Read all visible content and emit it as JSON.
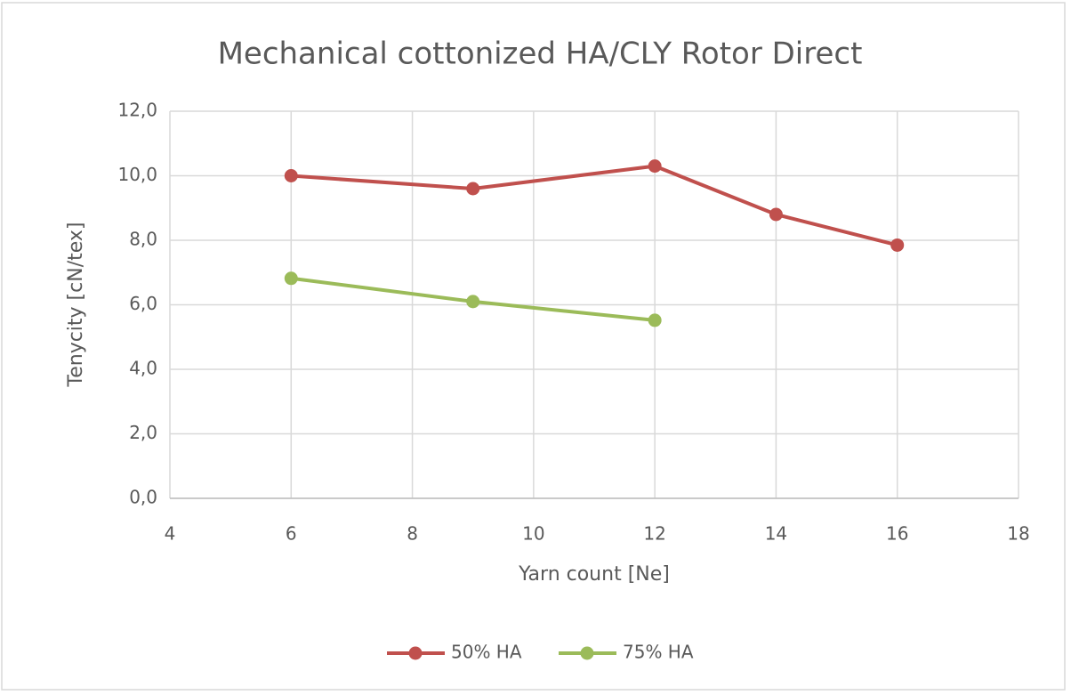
{
  "chart_data": {
    "type": "line",
    "title": "Mechanical cottonized HA/CLY Rotor Direct",
    "xlabel": "Yarn count [Ne]",
    "ylabel": "Tenycity [cN/tex]",
    "xlim": [
      4,
      18
    ],
    "xticks": [
      4,
      6,
      8,
      10,
      12,
      14,
      16,
      18
    ],
    "ylim": [
      0,
      12
    ],
    "yticks": [
      {
        "value": 0,
        "label": "0,0"
      },
      {
        "value": 2,
        "label": "2,0"
      },
      {
        "value": 4,
        "label": "4,0"
      },
      {
        "value": 6,
        "label": "6,0"
      },
      {
        "value": 8,
        "label": "8,0"
      },
      {
        "value": 10,
        "label": "10,0"
      },
      {
        "value": 12,
        "label": "12,0"
      }
    ],
    "grid": true,
    "legend": "bottom",
    "series": [
      {
        "name": "50% HA",
        "color": "#c0504d",
        "x": [
          6,
          9,
          12,
          14,
          16
        ],
        "values": [
          10.0,
          9.6,
          10.3,
          8.8,
          7.85
        ]
      },
      {
        "name": "75% HA",
        "color": "#9bbb59",
        "x": [
          6,
          9,
          12
        ],
        "values": [
          6.82,
          6.1,
          5.52
        ]
      }
    ]
  }
}
